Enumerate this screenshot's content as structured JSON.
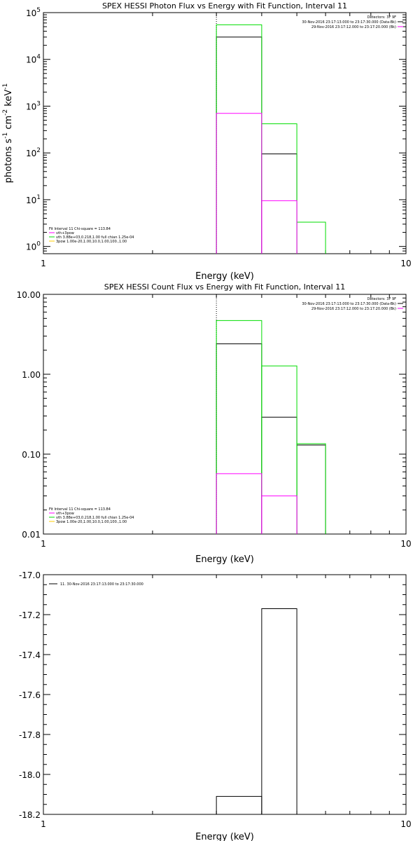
{
  "chart_data": [
    {
      "type": "line",
      "step": true,
      "title": "SPEX HESSI Photon Flux vs Energy with Fit Function, Interval 11",
      "xlabel": "Energy (keV)",
      "ylabel_parts": [
        "photons s",
        "-1",
        " cm",
        "-2",
        " keV",
        "-1"
      ],
      "xscale": "log",
      "yscale": "log",
      "xlim": [
        1,
        10
      ],
      "ylim": [
        0.7,
        100000
      ],
      "x_ticks": [
        {
          "value": 1,
          "label": "1"
        },
        {
          "value": 10,
          "label": "10"
        }
      ],
      "y_ticks": [
        {
          "value": 1,
          "mantissa": "10",
          "exp": "0"
        },
        {
          "value": 10,
          "mantissa": "10",
          "exp": "1"
        },
        {
          "value": 100,
          "mantissa": "10",
          "exp": "2"
        },
        {
          "value": 1000,
          "mantissa": "10",
          "exp": "3"
        },
        {
          "value": 10000,
          "mantissa": "10",
          "exp": "4"
        },
        {
          "value": 100000,
          "mantissa": "10",
          "exp": "5"
        }
      ],
      "vline": 3.0,
      "series": [
        {
          "role": "data",
          "color": "#000000",
          "bins": [
            [
              3.0,
              4.0,
              30000
            ],
            [
              4.0,
              5.0,
              95
            ]
          ]
        },
        {
          "role": "model",
          "color": "#00dd00",
          "bins": [
            [
              3.0,
              4.0,
              55000
            ],
            [
              4.0,
              5.0,
              420
            ],
            [
              5.0,
              6.0,
              3.3
            ]
          ]
        },
        {
          "role": "background",
          "color": "#ff00ff",
          "bins": [
            [
              3.0,
              4.0,
              700
            ],
            [
              4.0,
              5.0,
              9.5
            ]
          ]
        }
      ],
      "top_legend": [
        {
          "text": "Detectors: 3F 9F",
          "color": ""
        },
        {
          "text": "30-Nov-2016 23:17:13.000 to 23:17:30.000 (Data-Bk)",
          "color": "#000000"
        },
        {
          "text": "29-Nov-2016 23:17:12.000 to 23:17:20.000 (Bk)",
          "color": "#ff00ff"
        }
      ],
      "fit_legend": [
        {
          "text": "Fit Interval 11   Chi-square = 113.84",
          "color": ""
        },
        {
          "text": "vth+3pow",
          "color": "#ff00ff"
        },
        {
          "text": "vth 3.88e+03,0.218,1.00  full chian 1.25e-04",
          "color": "#00dd00"
        },
        {
          "text": "3pow 1.00e-20,1.00,10.0,1.00,100.,1.00",
          "color": "#ffcc00"
        }
      ]
    },
    {
      "type": "line",
      "step": true,
      "title": "SPEX HESSI Count Flux vs Energy with Fit Function, Interval 11",
      "xlabel": "Energy (keV)",
      "ylabel_parts": [],
      "xscale": "log",
      "yscale": "log",
      "xlim": [
        1,
        10
      ],
      "ylim": [
        0.01,
        10
      ],
      "x_ticks": [
        {
          "value": 1,
          "label": "1"
        },
        {
          "value": 10,
          "label": "10"
        }
      ],
      "y_ticks": [
        {
          "value": 0.01,
          "label": "0.01"
        },
        {
          "value": 0.1,
          "label": "0.10"
        },
        {
          "value": 1,
          "label": "1.00"
        },
        {
          "value": 10,
          "label": "10.00"
        }
      ],
      "vline": 3.0,
      "series": [
        {
          "role": "data",
          "color": "#000000",
          "bins": [
            [
              3.0,
              4.0,
              2.4
            ],
            [
              4.0,
              5.0,
              0.29
            ],
            [
              5.0,
              6.0,
              0.13
            ]
          ]
        },
        {
          "role": "model",
          "color": "#00dd00",
          "bins": [
            [
              3.0,
              4.0,
              4.7
            ],
            [
              4.0,
              5.0,
              1.27
            ],
            [
              5.0,
              6.0,
              0.135
            ]
          ]
        },
        {
          "role": "background",
          "color": "#ff00ff",
          "bins": [
            [
              3.0,
              4.0,
              0.057
            ],
            [
              4.0,
              5.0,
              0.03
            ]
          ]
        }
      ],
      "top_legend": [
        {
          "text": "Detectors: 3F 9F",
          "color": ""
        },
        {
          "text": "30-Nov-2016 23:17:13.000 to 23:17:30.000 (Data-Bk)",
          "color": "#000000"
        },
        {
          "text": "29-Nov-2016 23:17:12.000 to 23:17:20.000 (Bk)",
          "color": "#ff00ff"
        }
      ],
      "fit_legend": [
        {
          "text": "Fit Interval 11   Chi-square = 113.84",
          "color": ""
        },
        {
          "text": "vth+3pow",
          "color": "#ff00ff"
        },
        {
          "text": "vth 3.88e+03,0.218,1.00  full chian 1.25e-04",
          "color": "#00dd00"
        },
        {
          "text": "3pow 1.00e-20,1.00,10.0,1.00,100.,1.00",
          "color": "#ffcc00"
        }
      ]
    },
    {
      "type": "line",
      "step": true,
      "title": "",
      "xlabel": "Energy (keV)",
      "ylabel_parts": [],
      "xscale": "log",
      "yscale": "linear",
      "xlim": [
        1,
        10
      ],
      "ylim": [
        -18.2,
        -17.0
      ],
      "x_ticks": [
        {
          "value": 1,
          "label": "1"
        },
        {
          "value": 10,
          "label": "10"
        }
      ],
      "y_ticks": [
        {
          "value": -17.0,
          "label": "-17.0"
        },
        {
          "value": -17.2,
          "label": "-17.2"
        },
        {
          "value": -17.4,
          "label": "-17.4"
        },
        {
          "value": -17.6,
          "label": "-17.6"
        },
        {
          "value": -17.8,
          "label": "-17.8"
        },
        {
          "value": -18.0,
          "label": "-18.0"
        },
        {
          "value": -18.2,
          "label": "-18.2"
        }
      ],
      "vline": null,
      "series": [
        {
          "role": "data",
          "color": "#000000",
          "bins": [
            [
              3.0,
              4.0,
              -18.11
            ],
            [
              4.0,
              5.0,
              -17.17
            ]
          ]
        }
      ],
      "top_legend": [],
      "fit_legend": [],
      "single_legend": {
        "text": "11. 30-Nov-2016 23:17:13.000 to 23:17:30.000",
        "color": "#000000"
      }
    }
  ]
}
